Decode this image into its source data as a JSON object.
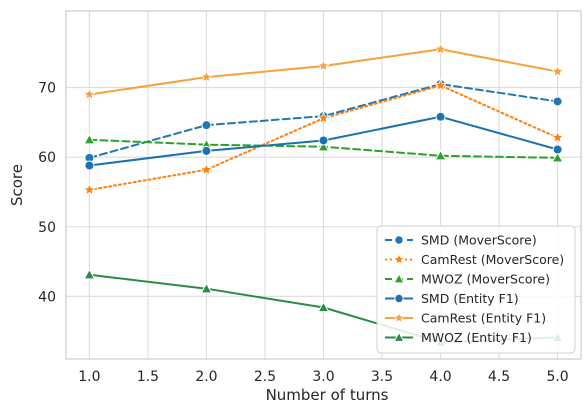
{
  "chart_data": {
    "type": "line",
    "xlabel": "Number of turns",
    "ylabel": "Score",
    "xlim": [
      0.8,
      5.2
    ],
    "ylim": [
      31,
      81
    ],
    "xticks": [
      1.0,
      1.5,
      2.0,
      2.5,
      3.0,
      3.5,
      4.0,
      4.5,
      5.0
    ],
    "xtick_labels": [
      "1.0",
      "1.5",
      "2.0",
      "2.5",
      "3.0",
      "3.5",
      "4.0",
      "4.5",
      "5.0"
    ],
    "yticks": [
      40,
      50,
      60,
      70
    ],
    "ytick_labels": [
      "40",
      "50",
      "60",
      "70"
    ],
    "grid": true,
    "legend_position": "bottom-right",
    "x": [
      1,
      2,
      3,
      4,
      5
    ],
    "series": [
      {
        "name": "SMD (MoverScore)",
        "values": [
          59.9,
          64.6,
          65.9,
          70.5,
          68.0
        ],
        "color": "#1f77b4",
        "dash": "dashed",
        "marker": "circle"
      },
      {
        "name": "CamRest (MoverScore)",
        "values": [
          55.3,
          58.2,
          65.6,
          70.3,
          62.8
        ],
        "color": "#ff7f0e",
        "dash": "dotted",
        "marker": "star"
      },
      {
        "name": "MWOZ (MoverScore)",
        "values": [
          62.5,
          61.8,
          61.5,
          60.2,
          59.9
        ],
        "color": "#2ca02c",
        "dash": "dashed",
        "marker": "triangle"
      },
      {
        "name": "SMD (Entity F1)",
        "values": [
          58.8,
          60.9,
          62.4,
          65.8,
          61.1
        ],
        "color": "#1a72b0",
        "dash": "solid",
        "marker": "circle"
      },
      {
        "name": "CamRest (Entity F1)",
        "values": [
          69.0,
          71.5,
          73.1,
          75.5,
          72.3
        ],
        "color": "#f8a13a",
        "dash": "solid",
        "marker": "star"
      },
      {
        "name": "MWOZ (Entity F1)",
        "values": [
          43.1,
          41.1,
          38.4,
          33.4,
          34.1
        ],
        "color": "#2a8a48",
        "dash": "solid",
        "marker": "triangle"
      }
    ]
  }
}
